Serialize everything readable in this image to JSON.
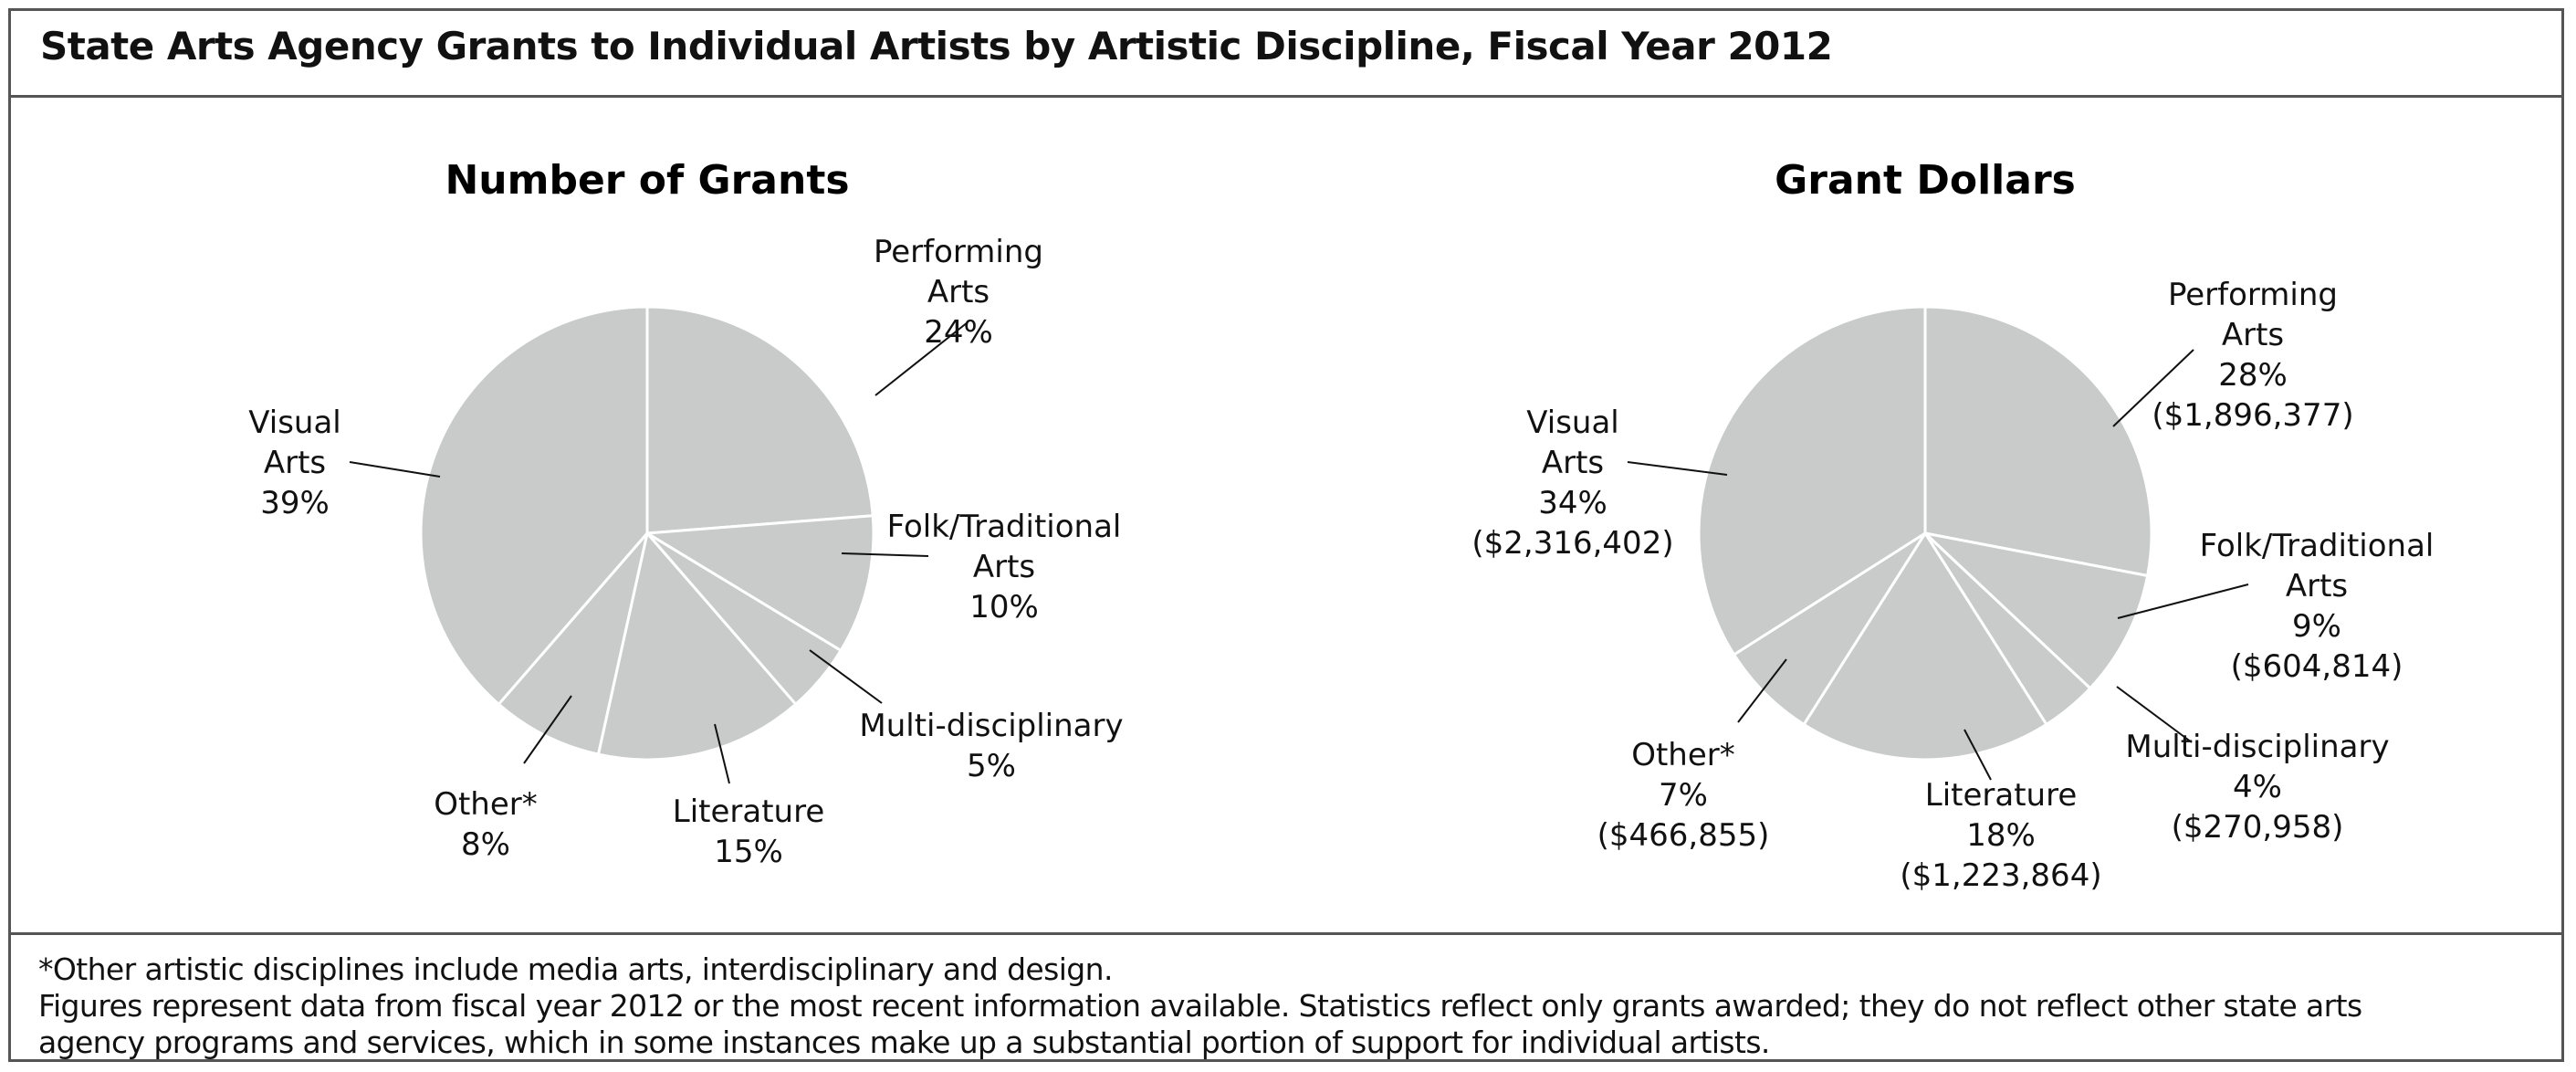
{
  "title": "State Arts Agency Grants to Individual Artists by Artistic Discipline, Fiscal Year 2012",
  "chart_data": [
    {
      "type": "pie",
      "title": "Number of Grants",
      "slices": [
        {
          "label_lines": [
            "Performing",
            "Arts",
            "24%"
          ],
          "value": 24
        },
        {
          "label_lines": [
            "Folk/Traditional",
            "Arts",
            "10%"
          ],
          "value": 10
        },
        {
          "label_lines": [
            "Multi-disciplinary",
            "5%"
          ],
          "value": 5
        },
        {
          "label_lines": [
            "Literature",
            "15%"
          ],
          "value": 15
        },
        {
          "label_lines": [
            "Other*",
            "8%"
          ],
          "value": 8
        },
        {
          "label_lines": [
            "Visual",
            "Arts",
            "39%"
          ],
          "value": 39
        }
      ],
      "slice_color": "#c8cbca"
    },
    {
      "type": "pie",
      "title": "Grant Dollars",
      "slices": [
        {
          "label_lines": [
            "Performing",
            "Arts",
            "28%",
            "($1,896,377)"
          ],
          "value": 28
        },
        {
          "label_lines": [
            "Folk/Traditional",
            "Arts",
            "9%",
            "($604,814)"
          ],
          "value": 9
        },
        {
          "label_lines": [
            "Multi-disciplinary",
            "4%",
            "($270,958)"
          ],
          "value": 4
        },
        {
          "label_lines": [
            "Literature",
            "18%",
            "($1,223,864)"
          ],
          "value": 18
        },
        {
          "label_lines": [
            "Other*",
            "7%",
            "($466,855)"
          ],
          "value": 7
        },
        {
          "label_lines": [
            "Visual",
            "Arts",
            "34%",
            "($2,316,402)"
          ],
          "value": 34
        }
      ],
      "slice_color": "#c8cbca"
    }
  ],
  "footnotes": {
    "line1": "*Other artistic disciplines include media arts, interdisciplinary and design.",
    "line2": "Figures represent data from fiscal year 2012 or the most recent information available. Statistics reflect only grants awarded; they do not reflect other state arts",
    "line3": "agency programs and services, which in some instances make up a substantial portion of support for individual artists."
  }
}
